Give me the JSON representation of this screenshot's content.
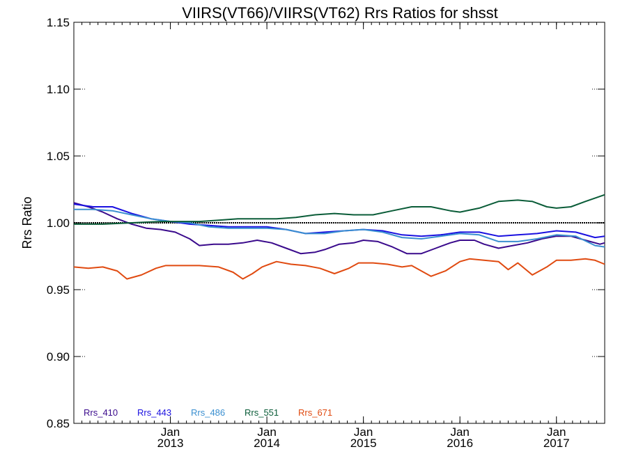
{
  "chart_data": {
    "type": "line",
    "title": "VIIRS(VT66)/VIIRS(VT62)  Rrs Ratios for shsst",
    "ylabel": "Rrs Ratio",
    "xlabel": "",
    "ylim": [
      0.85,
      1.15
    ],
    "yticks": [
      0.85,
      0.9,
      0.95,
      1.0,
      1.05,
      1.1,
      1.15
    ],
    "ytick_labels": [
      "0.85",
      "0.90",
      "0.95",
      "1.00",
      "1.05",
      "1.10",
      "1.15"
    ],
    "xlim": [
      2012.0,
      2017.5
    ],
    "xticks": [
      {
        "x": 2013.0,
        "line1": "Jan",
        "line2": "2013"
      },
      {
        "x": 2014.0,
        "line1": "Jan",
        "line2": "2014"
      },
      {
        "x": 2015.0,
        "line1": "Jan",
        "line2": "2015"
      },
      {
        "x": 2016.0,
        "line1": "Jan",
        "line2": "2016"
      },
      {
        "x": 2017.0,
        "line1": "Jan",
        "line2": "2017"
      }
    ],
    "reference_line": 1.0,
    "legend_position": "bottom-left",
    "series": [
      {
        "name": "Rrs_410",
        "color": "#3a0a8c",
        "x": [
          2012.0,
          2012.15,
          2012.3,
          2012.45,
          2012.6,
          2012.75,
          2012.9,
          2013.05,
          2013.2,
          2013.3,
          2013.45,
          2013.6,
          2013.75,
          2013.9,
          2014.05,
          2014.2,
          2014.35,
          2014.5,
          2014.6,
          2014.75,
          2014.9,
          2015.0,
          2015.15,
          2015.3,
          2015.45,
          2015.6,
          2015.75,
          2015.9,
          2016.0,
          2016.15,
          2016.25,
          2016.4,
          2016.55,
          2016.7,
          2016.85,
          2017.0,
          2017.15,
          2017.3,
          2017.45,
          2017.5
        ],
        "y": [
          1.015,
          1.012,
          1.008,
          1.003,
          0.999,
          0.996,
          0.995,
          0.993,
          0.988,
          0.983,
          0.984,
          0.984,
          0.985,
          0.987,
          0.985,
          0.981,
          0.977,
          0.978,
          0.98,
          0.984,
          0.985,
          0.987,
          0.986,
          0.982,
          0.977,
          0.977,
          0.981,
          0.985,
          0.987,
          0.987,
          0.984,
          0.981,
          0.983,
          0.985,
          0.988,
          0.99,
          0.99,
          0.987,
          0.984,
          0.985
        ]
      },
      {
        "name": "Rrs_443",
        "color": "#1a10e0",
        "x": [
          2012.0,
          2012.2,
          2012.4,
          2012.6,
          2012.8,
          2013.0,
          2013.2,
          2013.4,
          2013.6,
          2013.8,
          2014.0,
          2014.2,
          2014.4,
          2014.6,
          2014.8,
          2015.0,
          2015.2,
          2015.4,
          2015.6,
          2015.8,
          2016.0,
          2016.2,
          2016.4,
          2016.6,
          2016.8,
          2017.0,
          2017.2,
          2017.4,
          2017.5
        ],
        "y": [
          1.014,
          1.012,
          1.012,
          1.007,
          1.003,
          1.001,
          0.999,
          0.998,
          0.997,
          0.997,
          0.997,
          0.995,
          0.992,
          0.993,
          0.994,
          0.995,
          0.994,
          0.991,
          0.99,
          0.991,
          0.993,
          0.993,
          0.99,
          0.991,
          0.992,
          0.994,
          0.993,
          0.989,
          0.99
        ]
      },
      {
        "name": "Rrs_486",
        "color": "#3a8fd0",
        "x": [
          2012.0,
          2012.2,
          2012.4,
          2012.6,
          2012.8,
          2013.0,
          2013.2,
          2013.4,
          2013.6,
          2013.8,
          2014.0,
          2014.2,
          2014.4,
          2014.6,
          2014.8,
          2015.0,
          2015.2,
          2015.4,
          2015.6,
          2015.8,
          2016.0,
          2016.2,
          2016.4,
          2016.6,
          2016.8,
          2017.0,
          2017.2,
          2017.4,
          2017.5
        ],
        "y": [
          1.01,
          1.01,
          1.009,
          1.006,
          1.003,
          1.001,
          1.0,
          0.997,
          0.996,
          0.996,
          0.996,
          0.995,
          0.992,
          0.992,
          0.994,
          0.995,
          0.993,
          0.989,
          0.988,
          0.99,
          0.992,
          0.991,
          0.986,
          0.986,
          0.988,
          0.991,
          0.99,
          0.983,
          0.982
        ]
      },
      {
        "name": "Rrs_551",
        "color": "#0a5c38",
        "x": [
          2012.0,
          2012.3,
          2012.6,
          2012.9,
          2013.1,
          2013.3,
          2013.5,
          2013.7,
          2013.9,
          2014.1,
          2014.3,
          2014.5,
          2014.7,
          2014.9,
          2015.1,
          2015.3,
          2015.5,
          2015.7,
          2015.9,
          2016.0,
          2016.2,
          2016.4,
          2016.6,
          2016.75,
          2016.9,
          2017.0,
          2017.15,
          2017.3,
          2017.5
        ],
        "y": [
          0.999,
          0.999,
          1.0,
          1.001,
          1.001,
          1.001,
          1.002,
          1.003,
          1.003,
          1.003,
          1.004,
          1.006,
          1.007,
          1.006,
          1.006,
          1.009,
          1.012,
          1.012,
          1.009,
          1.008,
          1.011,
          1.016,
          1.017,
          1.016,
          1.012,
          1.011,
          1.012,
          1.016,
          1.021
        ]
      },
      {
        "name": "Rrs_671",
        "color": "#e04a10",
        "x": [
          2012.0,
          2012.15,
          2012.3,
          2012.45,
          2012.55,
          2012.7,
          2012.85,
          2012.95,
          2013.1,
          2013.3,
          2013.5,
          2013.65,
          2013.75,
          2013.85,
          2013.95,
          2014.1,
          2014.25,
          2014.4,
          2014.55,
          2014.7,
          2014.85,
          2014.95,
          2015.1,
          2015.25,
          2015.4,
          2015.5,
          2015.6,
          2015.7,
          2015.85,
          2016.0,
          2016.1,
          2016.25,
          2016.4,
          2016.5,
          2016.6,
          2016.75,
          2016.9,
          2017.0,
          2017.15,
          2017.3,
          2017.4,
          2017.5
        ],
        "y": [
          0.967,
          0.966,
          0.967,
          0.964,
          0.958,
          0.961,
          0.966,
          0.968,
          0.968,
          0.968,
          0.967,
          0.963,
          0.958,
          0.962,
          0.967,
          0.971,
          0.969,
          0.968,
          0.966,
          0.962,
          0.966,
          0.97,
          0.97,
          0.969,
          0.967,
          0.968,
          0.964,
          0.96,
          0.964,
          0.971,
          0.973,
          0.972,
          0.971,
          0.965,
          0.97,
          0.961,
          0.967,
          0.972,
          0.972,
          0.973,
          0.972,
          0.969
        ]
      }
    ]
  }
}
